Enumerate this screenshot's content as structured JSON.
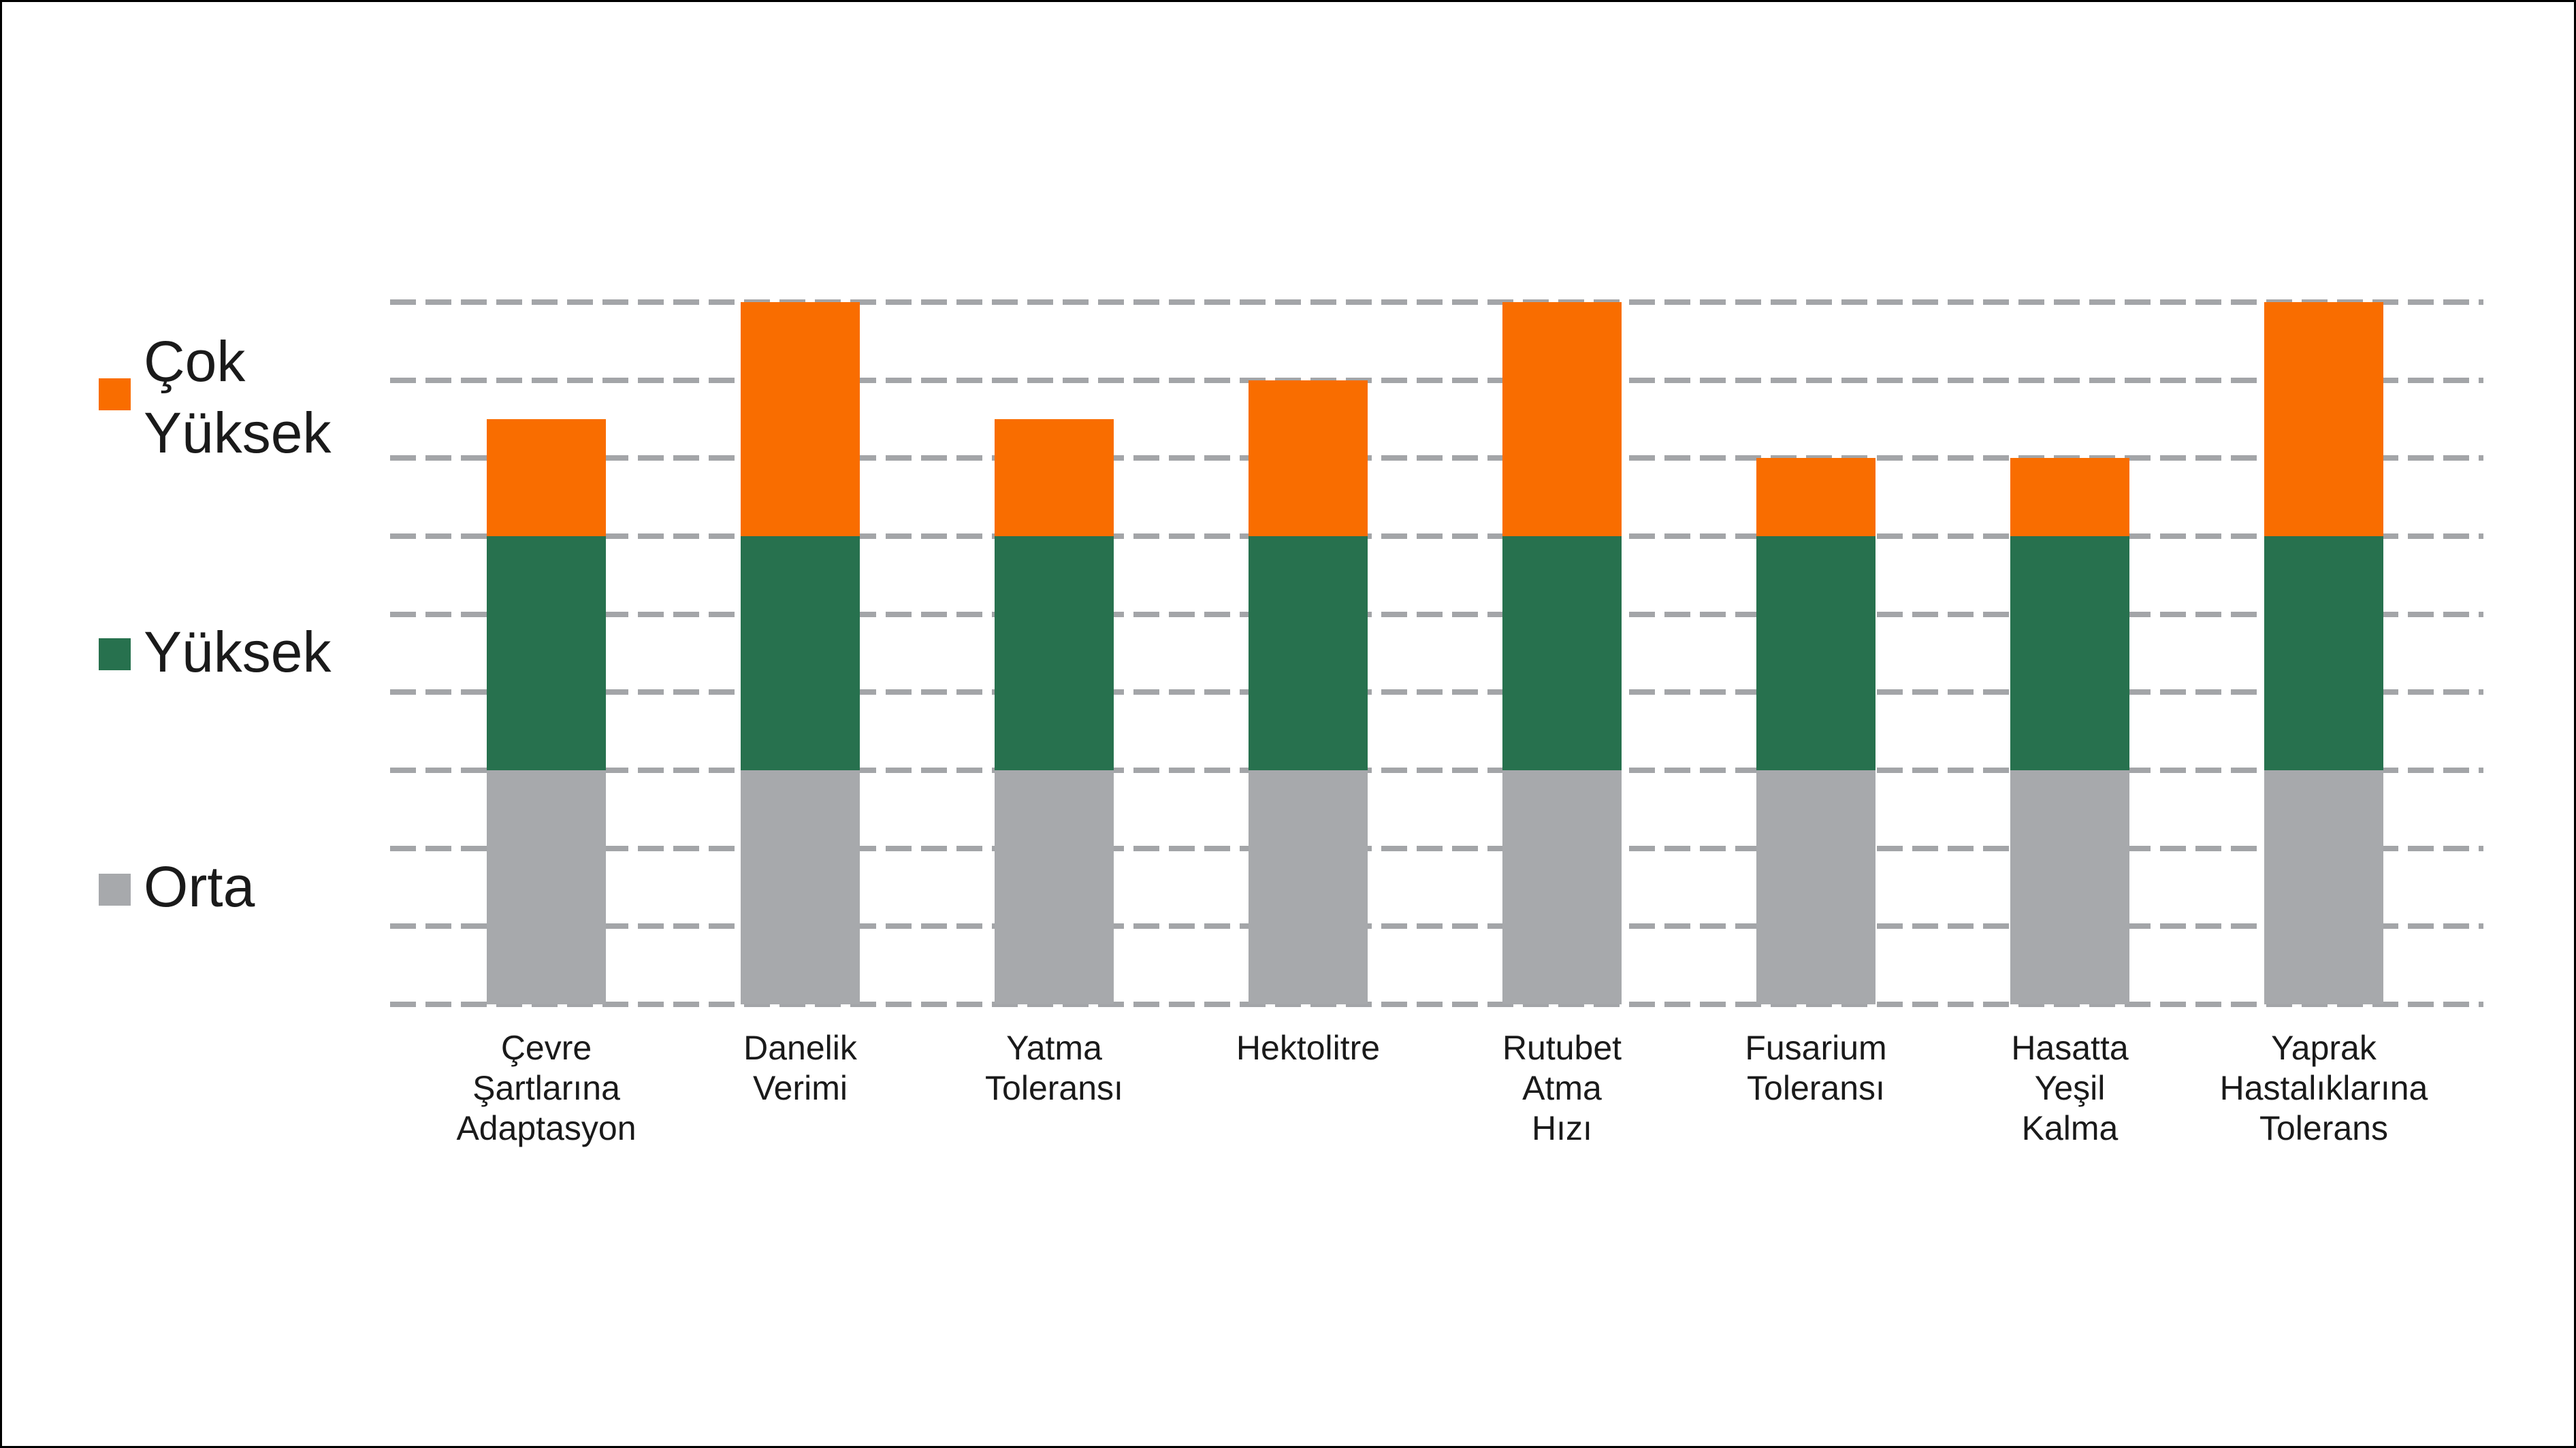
{
  "chart_data": {
    "type": "bar",
    "stacked": true,
    "title": "",
    "xlabel": "",
    "ylabel": "",
    "ylim": [
      0,
      9
    ],
    "gridlines": {
      "visible": true,
      "interval": 1,
      "style": "dashed",
      "color": "#a3a5a8"
    },
    "categories": [
      [
        "Çevre",
        "Şartlarına",
        "Adaptasyon"
      ],
      [
        "Danelik",
        "Verimi"
      ],
      [
        "Yatma",
        "Toleransı"
      ],
      [
        "Hektolitre"
      ],
      [
        "Rutubet",
        "Atma",
        "Hızı"
      ],
      [
        "Fusarium",
        "Toleransı"
      ],
      [
        "Hasatta",
        "Yeşil",
        "Kalma"
      ],
      [
        "Yaprak",
        "Hastalıklarına",
        "Tolerans"
      ]
    ],
    "series": [
      {
        "name": "Orta",
        "color": "#a7a9ac",
        "values": [
          3,
          3,
          3,
          3,
          3,
          3,
          3,
          3
        ]
      },
      {
        "name": "Yüksek",
        "color": "#27714e",
        "values": [
          3,
          3,
          3,
          3,
          3,
          3,
          3,
          3
        ]
      },
      {
        "name": "Çok Yüksek",
        "color": "#f96d00",
        "values": [
          1.5,
          3,
          1.5,
          2,
          3,
          1,
          1,
          3
        ]
      }
    ],
    "totals": [
      7.5,
      9,
      7.5,
      8,
      9,
      7,
      7,
      9
    ],
    "legend": {
      "position": "left",
      "items": [
        {
          "label": "Çok Yüksek",
          "color": "#f96d00"
        },
        {
          "label": "Yüksek",
          "color": "#27714e"
        },
        {
          "label": "Orta",
          "color": "#a7a9ac"
        }
      ]
    }
  }
}
